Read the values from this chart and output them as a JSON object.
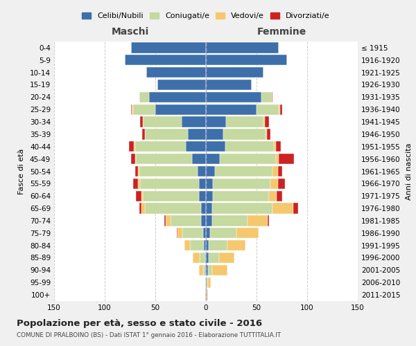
{
  "age_groups": [
    "0-4",
    "5-9",
    "10-14",
    "15-19",
    "20-24",
    "25-29",
    "30-34",
    "35-39",
    "40-44",
    "45-49",
    "50-54",
    "55-59",
    "60-64",
    "65-69",
    "70-74",
    "75-79",
    "80-84",
    "85-89",
    "90-94",
    "95-99",
    "100+"
  ],
  "birth_years": [
    "2011-2015",
    "2006-2010",
    "2001-2005",
    "1996-2000",
    "1991-1995",
    "1986-1990",
    "1981-1985",
    "1976-1980",
    "1971-1975",
    "1966-1970",
    "1961-1965",
    "1956-1960",
    "1951-1955",
    "1946-1950",
    "1941-1945",
    "1936-1940",
    "1931-1935",
    "1926-1930",
    "1921-1925",
    "1916-1920",
    "≤ 1915"
  ],
  "colors": {
    "celibi": "#3d6faa",
    "coniugati": "#c5d9a0",
    "vedovi": "#f5c86e",
    "divorziati": "#cc2222"
  },
  "maschi": {
    "celibi": [
      74,
      80,
      59,
      48,
      56,
      50,
      24,
      18,
      20,
      14,
      8,
      7,
      7,
      5,
      5,
      3,
      2,
      1,
      1,
      0,
      1
    ],
    "coniugati": [
      0,
      0,
      0,
      0,
      10,
      22,
      38,
      42,
      50,
      55,
      58,
      58,
      55,
      55,
      30,
      20,
      14,
      5,
      2,
      0,
      0
    ],
    "vedovi": [
      0,
      0,
      0,
      0,
      0,
      1,
      0,
      0,
      1,
      1,
      1,
      2,
      2,
      4,
      5,
      5,
      5,
      7,
      4,
      1,
      0
    ],
    "divorziati": [
      0,
      0,
      0,
      0,
      0,
      1,
      3,
      3,
      5,
      4,
      3,
      5,
      5,
      2,
      1,
      1,
      0,
      0,
      0,
      0,
      0
    ]
  },
  "femmine": {
    "celibi": [
      72,
      80,
      57,
      45,
      55,
      50,
      20,
      17,
      19,
      14,
      9,
      7,
      7,
      6,
      6,
      4,
      3,
      3,
      2,
      1,
      1
    ],
    "coniugati": [
      0,
      0,
      0,
      0,
      10,
      22,
      37,
      42,
      48,
      55,
      57,
      57,
      55,
      60,
      35,
      26,
      18,
      10,
      4,
      1,
      0
    ],
    "vedovi": [
      0,
      0,
      0,
      0,
      0,
      1,
      1,
      1,
      2,
      3,
      5,
      7,
      8,
      20,
      20,
      22,
      18,
      15,
      15,
      3,
      1
    ],
    "divorziati": [
      0,
      0,
      0,
      0,
      1,
      2,
      4,
      4,
      5,
      15,
      4,
      7,
      5,
      5,
      1,
      0,
      0,
      0,
      0,
      0,
      0
    ]
  },
  "xlim": 150,
  "title": "Popolazione per età, sesso e stato civile - 2016",
  "subtitle": "COMUNE DI PRALBOINO (BS) - Dati ISTAT 1° gennaio 2016 - Elaborazione TUTTITALIA.IT",
  "ylabel_left": "Fasce di età",
  "ylabel_right": "Anni di nascita",
  "xlabel_maschi": "Maschi",
  "xlabel_femmine": "Femmine",
  "legend_labels": [
    "Celibi/Nubili",
    "Coniugati/e",
    "Vedovi/e",
    "Divorziati/e"
  ],
  "bg_color": "#f0f0f0",
  "plot_bg_color": "#ffffff"
}
